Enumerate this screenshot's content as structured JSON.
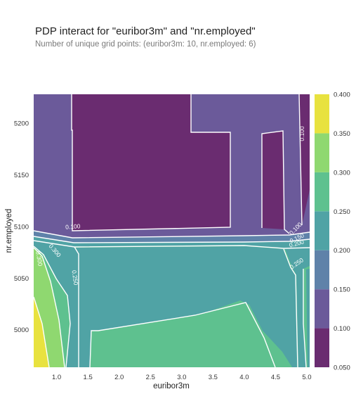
{
  "title": "PDP interact for \"euribor3m\" and \"nr.employed\"",
  "subtitle": "Number of unique grid points: (euribor3m: 10, nr.employed: 6)",
  "colors": {
    "levels": [
      "#6a2c70",
      "#6b5a9a",
      "#5f82a9",
      "#50a3a5",
      "#5ec18f",
      "#8fd870",
      "#e8e23f"
    ],
    "contour_line": "#ffffff",
    "axis_text": "#333333"
  },
  "chart_data": {
    "type": "heatmap",
    "title": "PDP interact for \"euribor3m\" and \"nr.employed\"",
    "xlabel": "euribor3m",
    "ylabel": "nr.employed",
    "xlim": [
      0.634,
      5.045
    ],
    "ylim": [
      4963.6,
      5228.1
    ],
    "x_ticks": [
      "1.0",
      "1.5",
      "2.0",
      "2.5",
      "3.0",
      "3.5",
      "4.0",
      "4.5",
      "5.0"
    ],
    "y_ticks": [
      "5000",
      "5050",
      "5100",
      "5150",
      "5200"
    ],
    "colorbar_ticks": [
      "0.050",
      "0.100",
      "0.150",
      "0.200",
      "0.250",
      "0.300",
      "0.350",
      "0.400"
    ],
    "levels": [
      0.05,
      0.1,
      0.15,
      0.2,
      0.25,
      0.3,
      0.35,
      0.4
    ],
    "contour_labels": [
      "0.100",
      "0.100",
      "0.100",
      "0.150",
      "0.200",
      "0.250",
      "0.250",
      "0.300",
      "0.300"
    ],
    "x_grid": [
      0.634,
      1.29,
      1.84,
      2.75,
      3.15,
      3.76,
      4.04,
      4.37,
      4.86,
      5.045
    ],
    "y_grid": [
      4963.6,
      5076.0,
      5099.0,
      5191.0,
      5195.8,
      5228.1
    ]
  }
}
